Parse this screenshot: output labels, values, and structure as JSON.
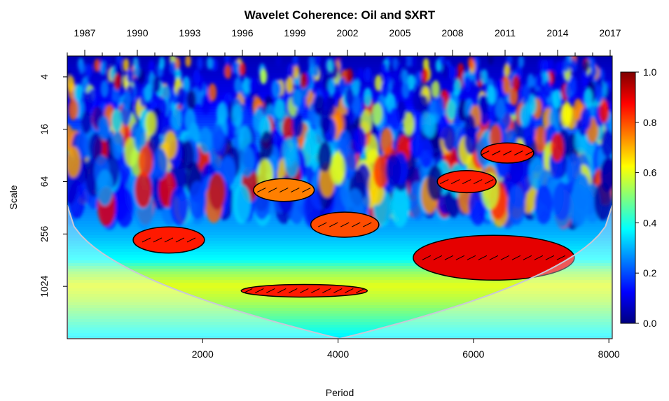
{
  "chart_data": {
    "type": "heatmap",
    "title": "Wavelet Coherence: Oil and $XRT",
    "xlabel": "Period",
    "ylabel": "Scale",
    "x_range": [
      0,
      8050
    ],
    "x_ticks": [
      2000,
      4000,
      6000,
      8000
    ],
    "x_tick_labels": [
      "2000",
      "4000",
      "6000",
      "8000"
    ],
    "top_axis_years": [
      "1987",
      "1990",
      "1993",
      "1996",
      "1999",
      "2002",
      "2005",
      "2008",
      "2011",
      "2014",
      "2017"
    ],
    "y_scale": "log2",
    "y_range": [
      2.3,
      4096
    ],
    "y_ticks": [
      4,
      16,
      64,
      256,
      1024
    ],
    "y_tick_labels": [
      "4",
      "16",
      "64",
      "256",
      "1024"
    ],
    "colorbar": {
      "range": [
        0,
        1
      ],
      "ticks": [
        0.0,
        0.2,
        0.4,
        0.6,
        0.8,
        1.0
      ],
      "tick_labels": [
        "0.0",
        "0.2",
        "0.4",
        "0.6",
        "0.8",
        "1.0"
      ],
      "colors": [
        "#00007f",
        "#0000ff",
        "#007fff",
        "#00ffff",
        "#7fff7f",
        "#ffff00",
        "#ff7f00",
        "#ff0000",
        "#7f0000"
      ]
    },
    "significant_regions": [
      {
        "x_center": 1500,
        "scale_center": 300,
        "coherence": 0.85
      },
      {
        "x_center": 3500,
        "scale_center": 1150,
        "coherence": 0.85
      },
      {
        "x_center": 4100,
        "scale_center": 200,
        "coherence": 0.8
      },
      {
        "x_center": 6300,
        "scale_center": 480,
        "coherence": 0.9
      },
      {
        "x_center": 5900,
        "scale_center": 64,
        "coherence": 0.85
      },
      {
        "x_center": 6500,
        "scale_center": 30,
        "coherence": 0.85
      },
      {
        "x_center": 3200,
        "scale_center": 80,
        "coherence": 0.75
      }
    ]
  }
}
